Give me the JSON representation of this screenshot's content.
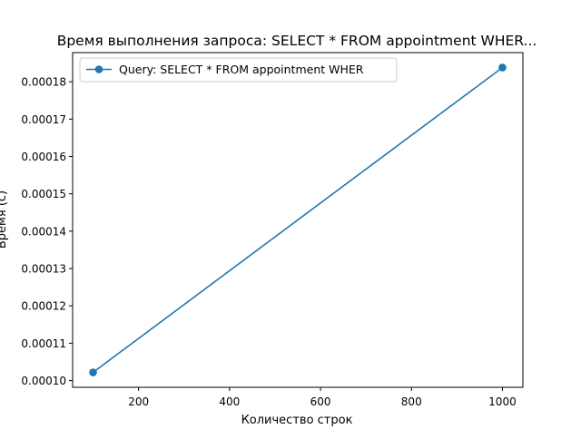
{
  "chart_data": {
    "type": "line",
    "title": "Время выполнения запроса: SELECT * FROM appointment WHER...",
    "xlabel": "Количество строк",
    "ylabel": "Время (с)",
    "xlim": [
      55,
      1045
    ],
    "ylim": [
      9.82e-05,
      0.0001878
    ],
    "x_ticks": [
      200,
      400,
      600,
      800,
      1000
    ],
    "x_tick_labels": [
      "200",
      "400",
      "600",
      "800",
      "1000"
    ],
    "y_ticks": [
      0.0001,
      0.00011,
      0.00012,
      0.00013,
      0.00014,
      0.00015,
      0.00016,
      0.00017,
      0.00018
    ],
    "y_tick_labels": [
      "0.00010",
      "0.00011",
      "0.00012",
      "0.00013",
      "0.00014",
      "0.00015",
      "0.00016",
      "0.00017",
      "0.00018"
    ],
    "grid": false,
    "legend_position": "top-left",
    "series": [
      {
        "name": "Query: SELECT * FROM appointment WHER",
        "color": "#1f77b4",
        "marker": "circle",
        "x": [
          100,
          1000
        ],
        "y": [
          0.0001022,
          0.0001838
        ]
      }
    ]
  }
}
